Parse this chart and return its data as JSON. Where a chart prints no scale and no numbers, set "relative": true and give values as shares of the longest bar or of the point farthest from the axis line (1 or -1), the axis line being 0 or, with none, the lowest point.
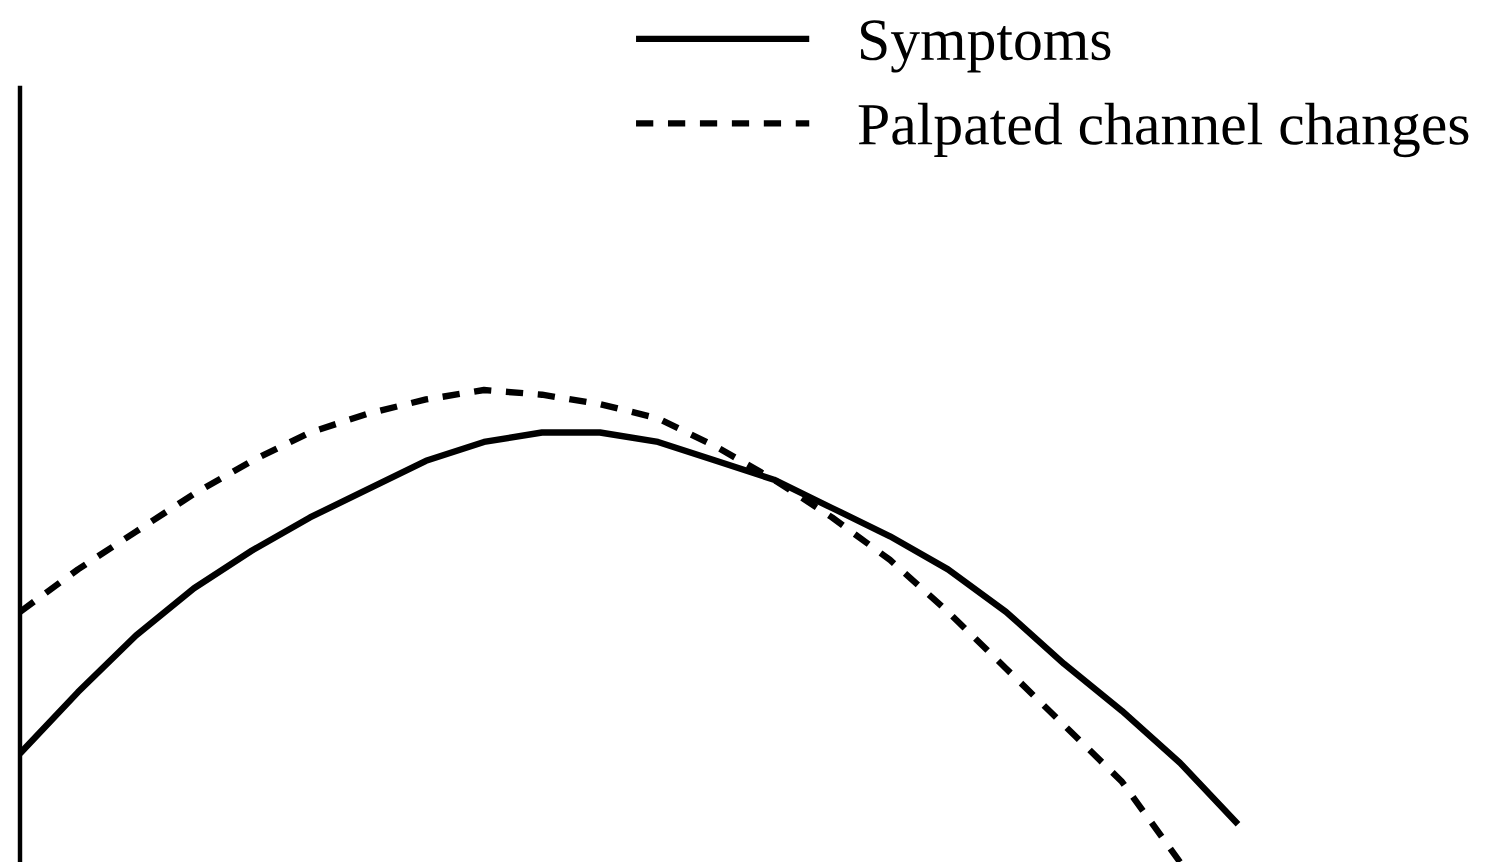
{
  "chart_data": {
    "type": "line",
    "relative": true,
    "legend": "top right",
    "categories": [
      null,
      null,
      null,
      null,
      null,
      null,
      null,
      null,
      null,
      null,
      null,
      null,
      null,
      null,
      null,
      null,
      null,
      null,
      null,
      null,
      null,
      null
    ],
    "series": [
      {
        "name": "Symptoms",
        "color": "#000000",
        "line_style": "solid",
        "values": [
          0.23,
          0.36,
          0.48,
          0.58,
          0.66,
          0.73,
          0.79,
          0.85,
          0.89,
          0.91,
          0.91,
          0.89,
          0.85,
          0.81,
          0.75,
          0.69,
          0.62,
          0.53,
          0.42,
          0.32,
          0.21,
          0.08
        ]
      },
      {
        "name": "Palpated channel changes",
        "color": "#000000",
        "line_style": "dashed",
        "values": [
          0.53,
          0.62,
          0.7,
          0.78,
          0.85,
          0.91,
          0.95,
          0.98,
          1.0,
          0.99,
          0.97,
          0.94,
          0.88,
          0.81,
          0.73,
          0.64,
          0.53,
          0.41,
          0.29,
          0.17,
          0.0,
          null
        ]
      }
    ]
  }
}
